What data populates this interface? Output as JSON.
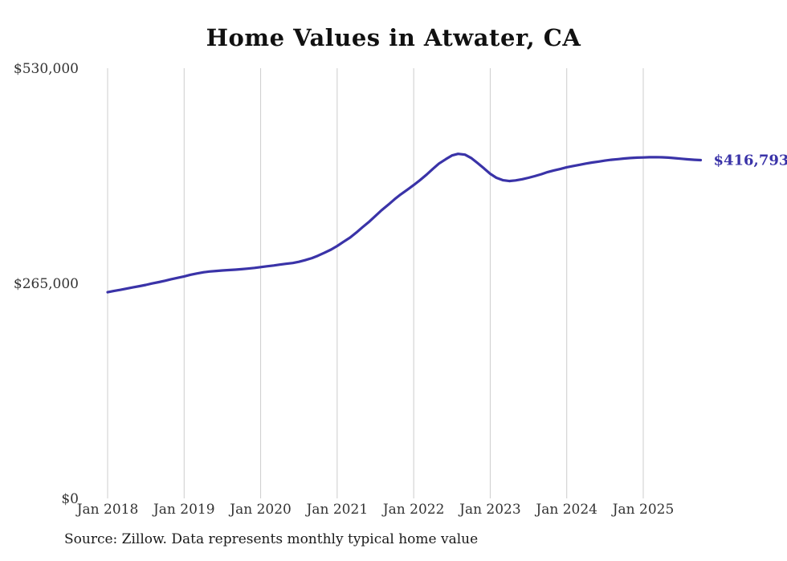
{
  "title": "Home Values in Atwater, CA",
  "source": "Source: Zillow. Data represents monthly typical home value",
  "chart_data": {
    "type": "line",
    "title": "Home Values in Atwater, CA",
    "xlabel": "",
    "ylabel": "",
    "xlim": [
      2018,
      2025.92
    ],
    "ylim": [
      0,
      530000
    ],
    "grid": "vertical-only",
    "legend": "none",
    "line_color": "#3a33a8",
    "grid_color": "#cccccc",
    "tick_text_color": "#333333",
    "end_label": "$416,793",
    "end_value": 416793,
    "x_ticks": [
      {
        "label": "Jan 2018",
        "x": 2018
      },
      {
        "label": "Jan 2019",
        "x": 2019
      },
      {
        "label": "Jan 2020",
        "x": 2020
      },
      {
        "label": "Jan 2021",
        "x": 2021
      },
      {
        "label": "Jan 2022",
        "x": 2022
      },
      {
        "label": "Jan 2023",
        "x": 2023
      },
      {
        "label": "Jan 2024",
        "x": 2024
      },
      {
        "label": "Jan 2025",
        "x": 2025
      }
    ],
    "y_ticks": [
      {
        "label": "$0",
        "value": 0
      },
      {
        "label": "$265,000",
        "value": 265000
      },
      {
        "label": "$530,000",
        "value": 530000
      }
    ],
    "series": [
      {
        "name": "Monthly typical home value",
        "points": [
          [
            2018.0,
            254000
          ],
          [
            2018.08,
            255500
          ],
          [
            2018.17,
            257000
          ],
          [
            2018.25,
            258500
          ],
          [
            2018.33,
            260000
          ],
          [
            2018.42,
            261500
          ],
          [
            2018.5,
            263000
          ],
          [
            2018.58,
            264800
          ],
          [
            2018.67,
            266500
          ],
          [
            2018.75,
            268200
          ],
          [
            2018.83,
            270000
          ],
          [
            2018.92,
            271800
          ],
          [
            2019.0,
            273500
          ],
          [
            2019.08,
            275500
          ],
          [
            2019.17,
            277200
          ],
          [
            2019.25,
            278500
          ],
          [
            2019.33,
            279500
          ],
          [
            2019.42,
            280200
          ],
          [
            2019.5,
            280800
          ],
          [
            2019.58,
            281300
          ],
          [
            2019.67,
            281800
          ],
          [
            2019.75,
            282400
          ],
          [
            2019.83,
            283100
          ],
          [
            2019.92,
            284000
          ],
          [
            2020.0,
            285000
          ],
          [
            2020.08,
            286000
          ],
          [
            2020.17,
            287000
          ],
          [
            2020.25,
            288000
          ],
          [
            2020.33,
            289000
          ],
          [
            2020.42,
            290000
          ],
          [
            2020.5,
            291500
          ],
          [
            2020.58,
            293500
          ],
          [
            2020.67,
            296000
          ],
          [
            2020.75,
            299000
          ],
          [
            2020.83,
            302500
          ],
          [
            2020.92,
            306500
          ],
          [
            2021.0,
            311000
          ],
          [
            2021.08,
            316000
          ],
          [
            2021.17,
            321500
          ],
          [
            2021.25,
            327500
          ],
          [
            2021.33,
            334000
          ],
          [
            2021.42,
            341000
          ],
          [
            2021.5,
            348000
          ],
          [
            2021.58,
            355000
          ],
          [
            2021.67,
            362000
          ],
          [
            2021.75,
            368500
          ],
          [
            2021.83,
            374500
          ],
          [
            2021.92,
            380500
          ],
          [
            2022.0,
            386000
          ],
          [
            2022.08,
            392000
          ],
          [
            2022.17,
            399000
          ],
          [
            2022.25,
            406000
          ],
          [
            2022.33,
            412500
          ],
          [
            2022.42,
            418000
          ],
          [
            2022.5,
            422500
          ],
          [
            2022.58,
            424500
          ],
          [
            2022.67,
            423500
          ],
          [
            2022.75,
            419500
          ],
          [
            2022.83,
            413500
          ],
          [
            2022.92,
            406500
          ],
          [
            2023.0,
            400000
          ],
          [
            2023.08,
            395000
          ],
          [
            2023.17,
            392000
          ],
          [
            2023.25,
            391000
          ],
          [
            2023.33,
            391800
          ],
          [
            2023.42,
            393200
          ],
          [
            2023.5,
            395000
          ],
          [
            2023.58,
            397000
          ],
          [
            2023.67,
            399500
          ],
          [
            2023.75,
            402000
          ],
          [
            2023.83,
            404000
          ],
          [
            2023.92,
            406000
          ],
          [
            2024.0,
            408000
          ],
          [
            2024.08,
            409500
          ],
          [
            2024.17,
            411000
          ],
          [
            2024.25,
            412500
          ],
          [
            2024.33,
            413800
          ],
          [
            2024.42,
            415000
          ],
          [
            2024.5,
            416200
          ],
          [
            2024.58,
            417200
          ],
          [
            2024.67,
            418000
          ],
          [
            2024.75,
            418800
          ],
          [
            2024.83,
            419400
          ],
          [
            2024.92,
            419800
          ],
          [
            2025.0,
            420000
          ],
          [
            2025.08,
            420300
          ],
          [
            2025.17,
            420400
          ],
          [
            2025.25,
            420200
          ],
          [
            2025.33,
            419800
          ],
          [
            2025.42,
            419200
          ],
          [
            2025.5,
            418500
          ],
          [
            2025.58,
            417800
          ],
          [
            2025.67,
            417200
          ],
          [
            2025.75,
            416793
          ]
        ]
      }
    ]
  }
}
